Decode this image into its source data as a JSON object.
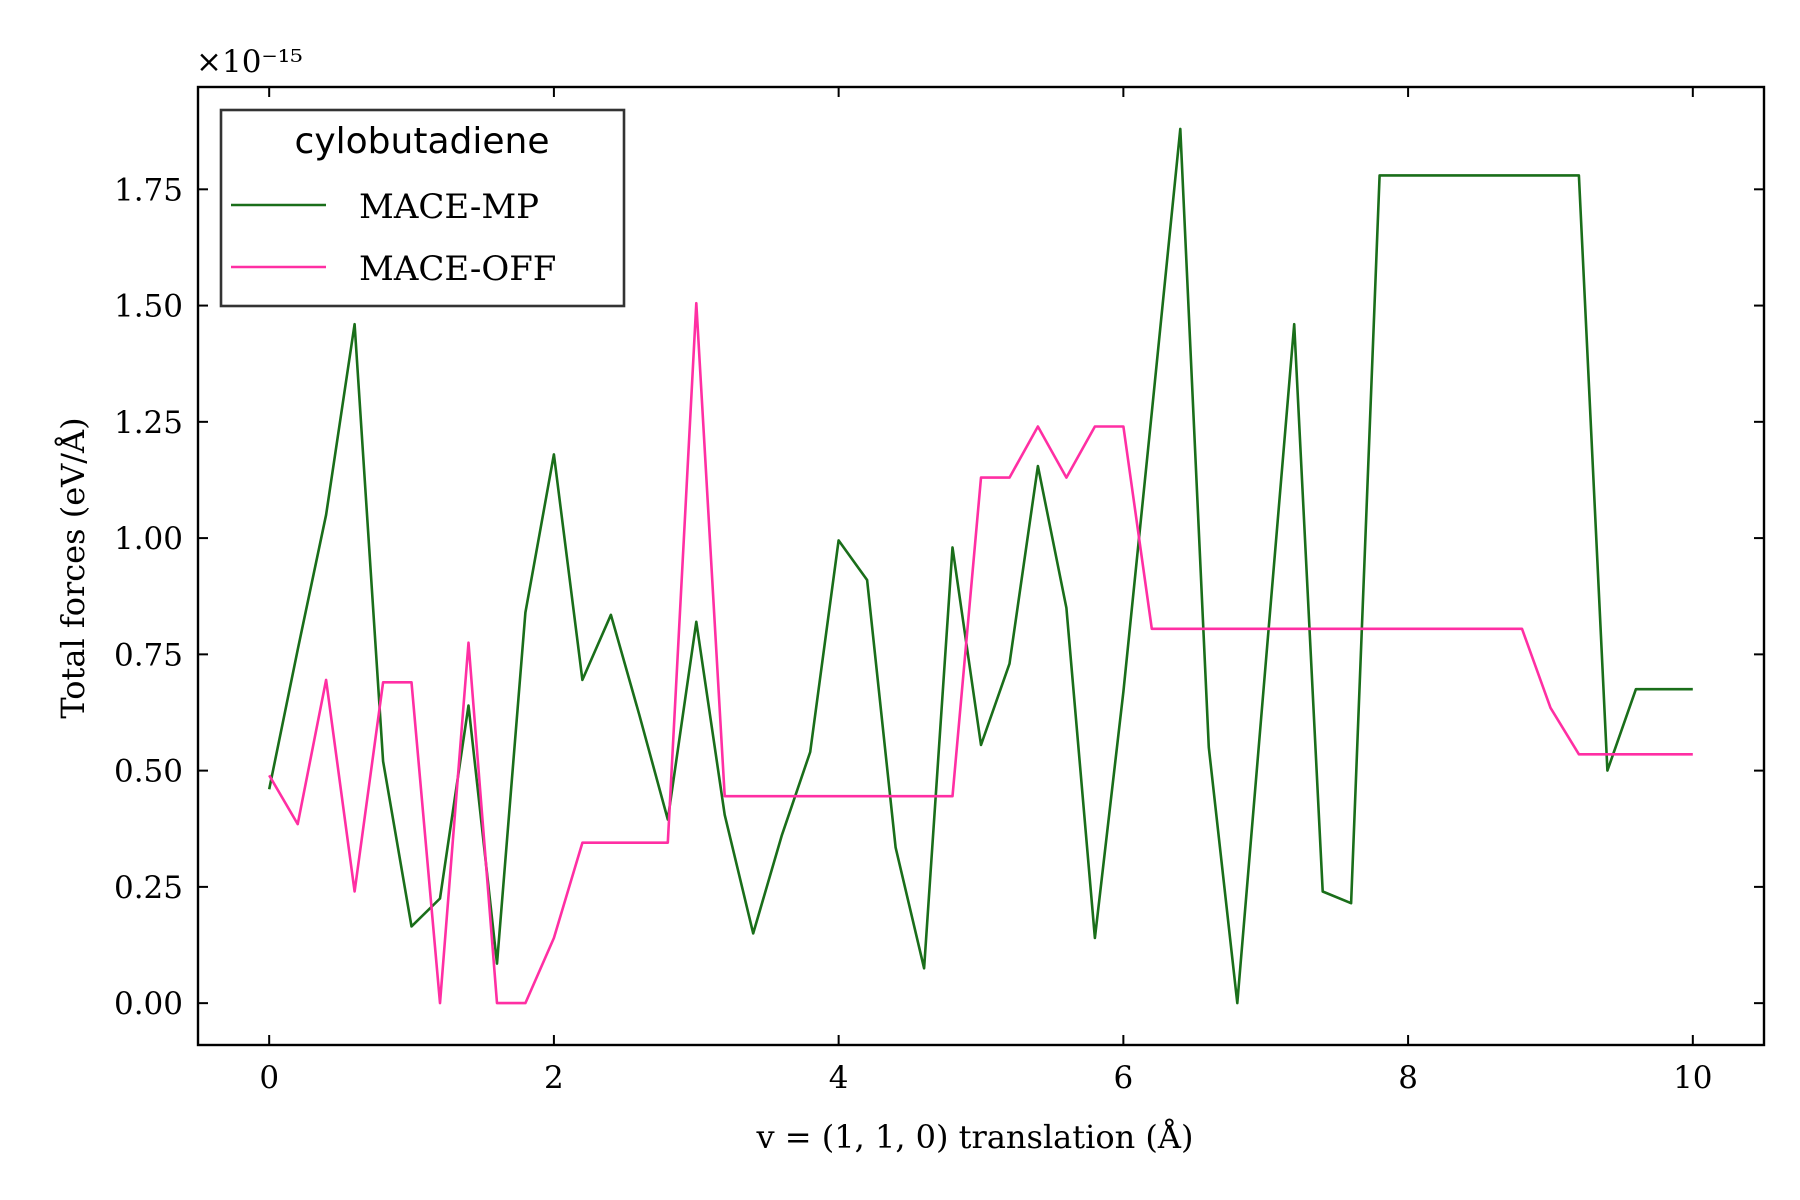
{
  "chart_data": {
    "type": "line",
    "title": "",
    "xlabel": "v = (1, 1, 0)    translation (Å)",
    "ylabel": "Total forces    (eV/Å)",
    "offset_text": "×10⁻¹⁵",
    "xlim": [
      -0.5,
      10.5
    ],
    "ylim": [
      -0.09,
      1.97
    ],
    "xticks": [
      0,
      2,
      4,
      6,
      8,
      10
    ],
    "xtick_labels": [
      "0",
      "2",
      "4",
      "6",
      "8",
      "10"
    ],
    "yticks": [
      0.0,
      0.25,
      0.5,
      0.75,
      1.0,
      1.25,
      1.5,
      1.75
    ],
    "ytick_labels": [
      "0.00",
      "0.25",
      "0.50",
      "0.75",
      "1.00",
      "1.25",
      "1.50",
      "1.75"
    ],
    "grid": false,
    "legend": {
      "title": "cylobutadiene",
      "position": "top-left"
    },
    "x": [
      0.0,
      0.2,
      0.4,
      0.6,
      0.8,
      1.0,
      1.2,
      1.4,
      1.6,
      1.8,
      2.0,
      2.2,
      2.4,
      2.6,
      2.8,
      3.0,
      3.2,
      3.4,
      3.6,
      3.8,
      4.0,
      4.2,
      4.4,
      4.6,
      4.8,
      5.0,
      5.2,
      5.4,
      5.6,
      5.8,
      6.0,
      6.2,
      6.4,
      6.6,
      6.8,
      7.0,
      7.2,
      7.4,
      7.6,
      7.8,
      8.0,
      8.2,
      8.4,
      8.6,
      8.8,
      9.0,
      9.2,
      9.4,
      9.6,
      9.8,
      10.0
    ],
    "series": [
      {
        "name": "MACE-MP",
        "color": "#1a6e1a",
        "values": [
          0.46,
          0.76,
          1.05,
          1.46,
          0.52,
          0.165,
          0.225,
          0.64,
          0.085,
          0.84,
          1.18,
          0.695,
          0.835,
          0.62,
          0.395,
          0.82,
          0.405,
          0.15,
          0.36,
          0.54,
          0.995,
          0.91,
          0.335,
          0.075,
          0.98,
          0.555,
          0.73,
          1.155,
          0.85,
          0.14,
          0.67,
          1.27,
          1.88,
          0.55,
          0.0,
          0.73,
          1.46,
          0.24,
          0.215,
          1.78,
          1.78,
          1.78,
          1.78,
          1.78,
          1.78,
          1.78,
          1.78,
          0.5,
          0.675,
          0.675,
          0.675
        ]
      },
      {
        "name": "MACE-OFF",
        "color": "#ff2fa3",
        "values": [
          0.49,
          0.385,
          0.695,
          0.24,
          0.69,
          0.69,
          0.0,
          0.775,
          0.0,
          0.0,
          0.14,
          0.345,
          0.345,
          0.345,
          0.345,
          1.505,
          0.445,
          0.445,
          0.445,
          0.445,
          0.445,
          0.445,
          0.445,
          0.445,
          0.445,
          1.13,
          1.13,
          1.24,
          1.13,
          1.24,
          1.24,
          0.805,
          0.805,
          0.805,
          0.805,
          0.805,
          0.805,
          0.805,
          0.805,
          0.805,
          0.805,
          0.805,
          0.805,
          0.805,
          0.805,
          0.635,
          0.535,
          0.535,
          0.535,
          0.535,
          0.535
        ]
      }
    ]
  }
}
